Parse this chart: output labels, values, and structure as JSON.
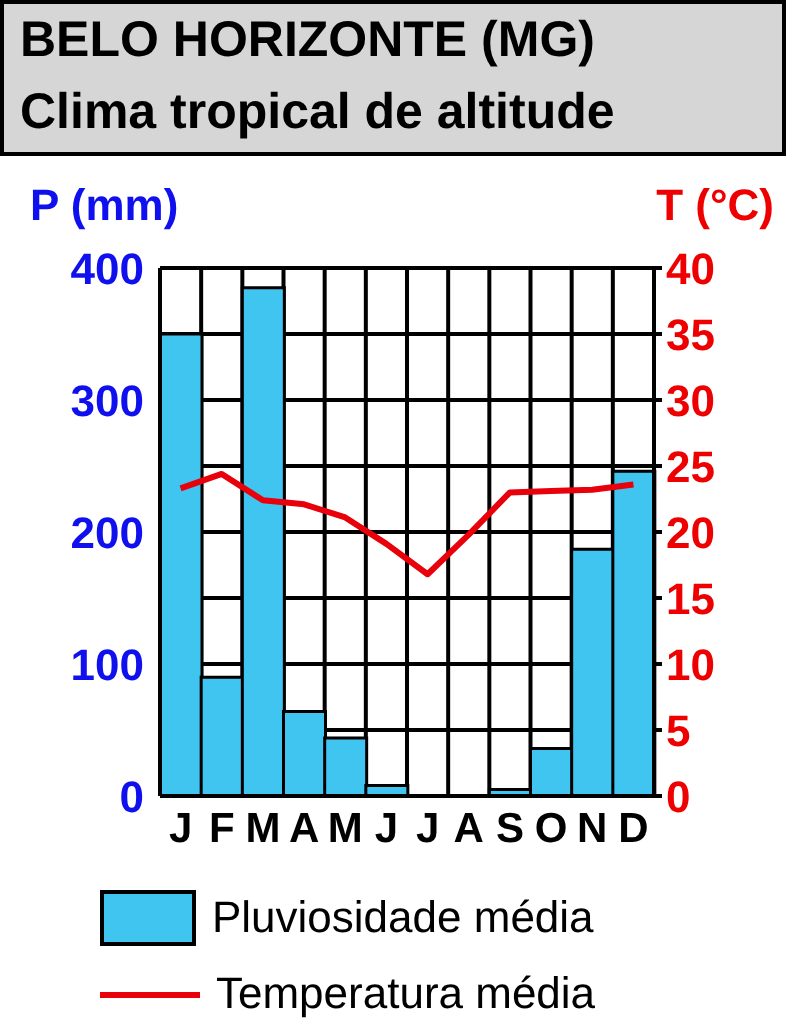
{
  "chart_data": {
    "type": "bar",
    "title": "BELO HORIZONTE (MG)",
    "subtitle": "Clima tropical de altitude",
    "ylabel": "P (mm)",
    "y2label": "T (°C)",
    "categories": [
      "J",
      "F",
      "M",
      "A",
      "M",
      "J",
      "J",
      "A",
      "S",
      "O",
      "N",
      "D"
    ],
    "series": [
      {
        "name": "Pluviosidade média",
        "color": "#40c4f0",
        "values": [
          350,
          90,
          385,
          64,
          44,
          8,
          0,
          0,
          5,
          36,
          187,
          246
        ]
      },
      {
        "name": "Temperatura média",
        "type": "line",
        "axis": "y2",
        "color": "#e8000b",
        "values": [
          23.3,
          24.4,
          22.4,
          22.1,
          21.1,
          19.1,
          16.8,
          19.8,
          23.0,
          23.1,
          23.2,
          23.6
        ]
      }
    ],
    "ylim": [
      0,
      400
    ],
    "yticks": [
      0,
      100,
      200,
      300,
      400
    ],
    "y2lim": [
      0,
      40
    ],
    "y2ticks": [
      0,
      5,
      10,
      15,
      20,
      25,
      30,
      35,
      40
    ],
    "grid": true,
    "legend": "bottom",
    "marker": "none"
  }
}
